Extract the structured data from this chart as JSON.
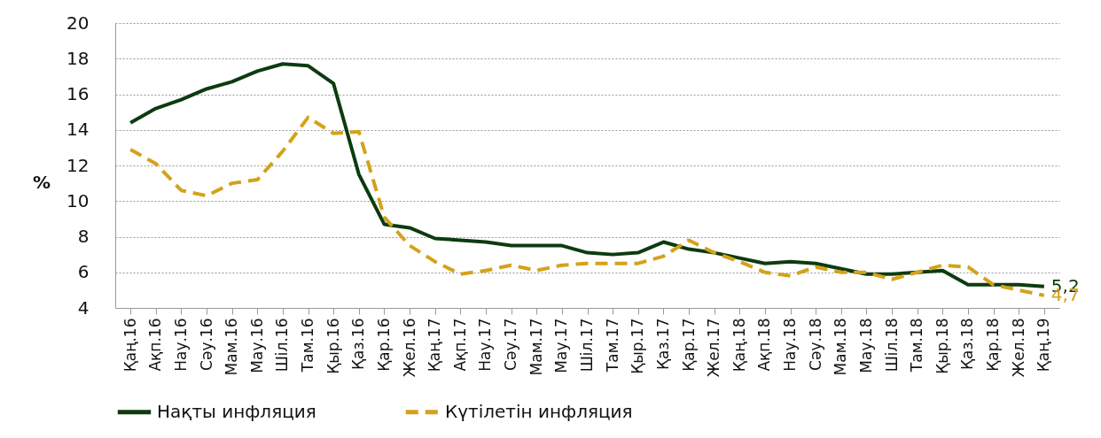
{
  "chart_data": {
    "type": "line",
    "ylabel": "%",
    "categories": [
      "Қаң.16",
      "Ақп.16",
      "Нау.16",
      "Сәу.16",
      "Мам.16",
      "Мау.16",
      "Шіл.16",
      "Там.16",
      "Қыр.16",
      "Қаз.16",
      "Қар.16",
      "Жел.16",
      "Қаң.17",
      "Ақп.17",
      "Нау.17",
      "Сәу.17",
      "Мам.17",
      "Мау.17",
      "Шіл.17",
      "Там.17",
      "Қыр.17",
      "Қаз.17",
      "Қар.17",
      "Жел.17",
      "Қаң.18",
      "Ақп.18",
      "Нау.18",
      "Сәу.18",
      "Мам.18",
      "Мау.18",
      "Шіл.18",
      "Там.18",
      "Қыр.18",
      "Қаз.18",
      "Қар.18",
      "Жел.18",
      "Қаң.19"
    ],
    "series": [
      {
        "name": "Нақты инфляция",
        "color": "#0d3b0f",
        "line_style": "solid",
        "values": [
          14.4,
          15.2,
          15.7,
          16.3,
          16.7,
          17.3,
          17.7,
          17.6,
          16.6,
          11.5,
          8.7,
          8.5,
          7.9,
          7.8,
          7.7,
          7.5,
          7.5,
          7.5,
          7.1,
          7.0,
          7.1,
          7.7,
          7.3,
          7.1,
          6.8,
          6.5,
          6.6,
          6.5,
          6.2,
          5.9,
          5.9,
          6.0,
          6.1,
          5.3,
          5.3,
          5.3,
          5.2
        ],
        "value_labels": [
          null,
          null,
          null,
          null,
          null,
          null,
          null,
          null,
          null,
          null,
          null,
          null,
          null,
          null,
          null,
          null,
          null,
          null,
          null,
          null,
          null,
          null,
          null,
          null,
          null,
          null,
          null,
          null,
          null,
          null,
          null,
          null,
          null,
          null,
          null,
          null,
          "5,2"
        ]
      },
      {
        "name": "Күтілетін инфляция",
        "color": "#d4a21a",
        "line_style": "dashed",
        "values": [
          12.9,
          12.1,
          10.6,
          10.3,
          11.0,
          11.2,
          12.8,
          14.7,
          13.8,
          13.9,
          9.1,
          7.5,
          6.6,
          5.9,
          6.1,
          6.4,
          6.1,
          6.4,
          6.5,
          6.5,
          6.5,
          6.9,
          7.8,
          7.1,
          6.6,
          6.0,
          5.8,
          6.3,
          6.0,
          6.0,
          5.6,
          6.0,
          6.4,
          6.3,
          5.3,
          5.0,
          4.7
        ],
        "value_labels": [
          null,
          null,
          null,
          null,
          null,
          null,
          null,
          null,
          null,
          null,
          null,
          null,
          null,
          null,
          null,
          null,
          null,
          null,
          null,
          null,
          null,
          null,
          null,
          null,
          null,
          null,
          null,
          null,
          null,
          null,
          null,
          null,
          null,
          null,
          null,
          null,
          "4,7"
        ]
      }
    ],
    "ylim": [
      4,
      20
    ],
    "yticks": [
      4,
      6,
      8,
      10,
      12,
      14,
      16,
      18,
      20
    ],
    "grid": "y",
    "legend": "bottom",
    "marker": "none"
  }
}
